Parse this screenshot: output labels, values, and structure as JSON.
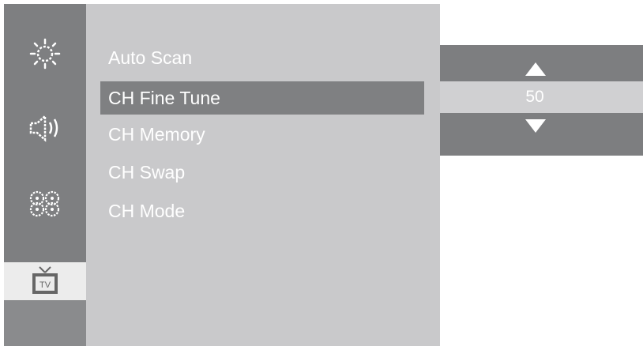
{
  "sidebar": {
    "items": [
      {
        "icon": "brightness-icon",
        "selected": false
      },
      {
        "icon": "speaker-icon",
        "selected": false
      },
      {
        "icon": "settings-gears-icon",
        "selected": false
      },
      {
        "icon": "tv-icon",
        "selected": true
      }
    ]
  },
  "menu": {
    "items": [
      {
        "label": "Auto Scan",
        "selected": false
      },
      {
        "label": "CH Fine Tune",
        "selected": true
      },
      {
        "label": "CH Memory",
        "selected": false
      },
      {
        "label": "CH Swap",
        "selected": false
      },
      {
        "label": "CH Mode",
        "selected": false
      }
    ]
  },
  "value_panel": {
    "value": "50",
    "up_icon": "triangle-up-icon",
    "down_icon": "triangle-down-icon"
  },
  "colors": {
    "sidebar_bg": "#7e7f81",
    "menu_bg": "#c9c9cb",
    "selected_bg": "#7f8082",
    "text": "#ffffff"
  }
}
